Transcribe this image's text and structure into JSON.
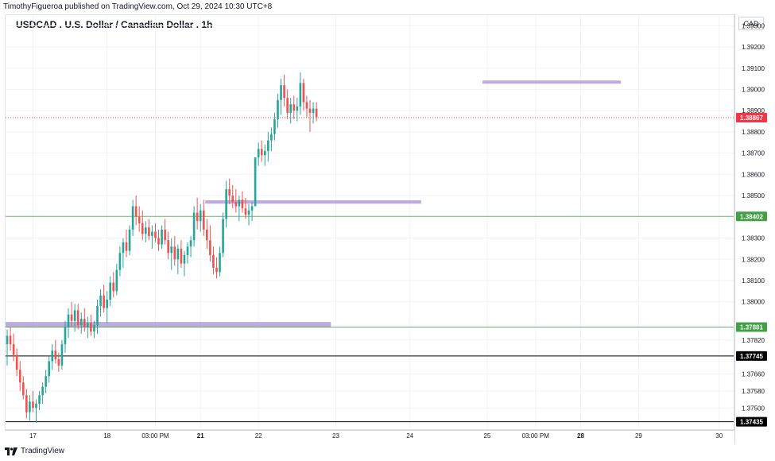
{
  "header": {
    "published_text": "TimothyFigueroa published on TradingView.com, Oct 29, 2024 10:30 UTC+8",
    "title": "USDCAD . U.S. Dollar / Canadian Dollar . 1h"
  },
  "price_axis": {
    "currency": "CAD"
  },
  "footer": {
    "brand": "TradingView"
  },
  "colors": {
    "up": "#26a69a",
    "down": "#ef5350",
    "zone": "#b39ddb",
    "last_price_tag": "#f23645",
    "support_tag": "#43a047",
    "black_tag": "#000000"
  },
  "chart_data": {
    "type": "candlestick",
    "symbol": "USDCAD",
    "interval": "1h",
    "ylim": [
      1.374,
      1.3935
    ],
    "y_ticks": [
      "1.39300",
      "1.39200",
      "1.39100",
      "1.39000",
      "1.38900",
      "1.38800",
      "1.38700",
      "1.38600",
      "1.38500",
      "1.38300",
      "1.38200",
      "1.38100",
      "1.38000",
      "1.37820",
      "1.37660",
      "1.37580",
      "1.37500"
    ],
    "y_tick_values": [
      1.393,
      1.392,
      1.391,
      1.39,
      1.389,
      1.388,
      1.387,
      1.386,
      1.385,
      1.383,
      1.382,
      1.381,
      1.38,
      1.3782,
      1.3766,
      1.3758,
      1.375
    ],
    "x_ticks": [
      {
        "label": "17",
        "bar": 8
      },
      {
        "label": "18",
        "bar": 31
      },
      {
        "label": "03:00 PM",
        "bar": 46
      },
      {
        "label": "21",
        "bar": 60
      },
      {
        "label": "22",
        "bar": 78
      },
      {
        "label": "23",
        "bar": 102
      },
      {
        "label": "24",
        "bar": 125
      },
      {
        "label": "25",
        "bar": 149
      },
      {
        "label": "03:00 PM",
        "bar": 164
      },
      {
        "label": "28",
        "bar": 178
      },
      {
        "label": "29",
        "bar": 196
      },
      {
        "label": "30",
        "bar": 221
      }
    ],
    "candles_ohlc": [
      [
        1.378,
        1.3787,
        1.377,
        1.3784
      ],
      [
        1.3784,
        1.3788,
        1.3777,
        1.378
      ],
      [
        1.378,
        1.3785,
        1.3772,
        1.3775
      ],
      [
        1.3775,
        1.3778,
        1.3765,
        1.3768
      ],
      [
        1.3768,
        1.3772,
        1.3758,
        1.3762
      ],
      [
        1.3762,
        1.3765,
        1.3754,
        1.3756
      ],
      [
        1.3756,
        1.3759,
        1.3745,
        1.3748
      ],
      [
        1.3748,
        1.3756,
        1.3744,
        1.3753
      ],
      [
        1.3753,
        1.3758,
        1.3748,
        1.375
      ],
      [
        1.375,
        1.3754,
        1.3743,
        1.3752
      ],
      [
        1.3752,
        1.3758,
        1.3749,
        1.3756
      ],
      [
        1.3756,
        1.3762,
        1.3752,
        1.376
      ],
      [
        1.376,
        1.3768,
        1.3757,
        1.3765
      ],
      [
        1.3765,
        1.3775,
        1.3762,
        1.3772
      ],
      [
        1.3772,
        1.378,
        1.3768,
        1.3777
      ],
      [
        1.3777,
        1.3782,
        1.3771,
        1.3773
      ],
      [
        1.3773,
        1.3776,
        1.3767,
        1.377
      ],
      [
        1.377,
        1.3782,
        1.3768,
        1.378
      ],
      [
        1.378,
        1.3791,
        1.3776,
        1.3788
      ],
      [
        1.3788,
        1.3797,
        1.3783,
        1.3794
      ],
      [
        1.3794,
        1.38,
        1.3788,
        1.3791
      ],
      [
        1.3791,
        1.3799,
        1.3786,
        1.3796
      ],
      [
        1.3796,
        1.3799,
        1.3787,
        1.3789
      ],
      [
        1.3789,
        1.3795,
        1.3785,
        1.3792
      ],
      [
        1.3792,
        1.3797,
        1.3786,
        1.3788
      ],
      [
        1.3788,
        1.3793,
        1.3783,
        1.379
      ],
      [
        1.379,
        1.3794,
        1.3784,
        1.3786
      ],
      [
        1.3786,
        1.3791,
        1.3783,
        1.3789
      ],
      [
        1.3789,
        1.3801,
        1.3785,
        1.3798
      ],
      [
        1.3798,
        1.3806,
        1.3793,
        1.3803
      ],
      [
        1.3803,
        1.3808,
        1.3795,
        1.3797
      ],
      [
        1.3797,
        1.3805,
        1.379,
        1.3801
      ],
      [
        1.3801,
        1.3812,
        1.3798,
        1.3809
      ],
      [
        1.3809,
        1.3814,
        1.3802,
        1.3805
      ],
      [
        1.3805,
        1.3818,
        1.3803,
        1.3815
      ],
      [
        1.3815,
        1.3826,
        1.3812,
        1.3823
      ],
      [
        1.3823,
        1.383,
        1.3816,
        1.3828
      ],
      [
        1.3828,
        1.3834,
        1.3821,
        1.3824
      ],
      [
        1.3824,
        1.3836,
        1.3822,
        1.3834
      ],
      [
        1.3834,
        1.3848,
        1.3831,
        1.3845
      ],
      [
        1.3845,
        1.385,
        1.3836,
        1.384
      ],
      [
        1.384,
        1.3845,
        1.3833,
        1.3837
      ],
      [
        1.3837,
        1.3843,
        1.3829,
        1.3832
      ],
      [
        1.3832,
        1.3838,
        1.3828,
        1.3835
      ],
      [
        1.3835,
        1.3839,
        1.3829,
        1.3831
      ],
      [
        1.3831,
        1.3836,
        1.3825,
        1.3833
      ],
      [
        1.3833,
        1.3837,
        1.3828,
        1.383
      ],
      [
        1.383,
        1.3834,
        1.3824,
        1.3827
      ],
      [
        1.3827,
        1.3836,
        1.3825,
        1.3834
      ],
      [
        1.3834,
        1.3839,
        1.3827,
        1.3829
      ],
      [
        1.3829,
        1.3833,
        1.382,
        1.3823
      ],
      [
        1.3823,
        1.383,
        1.3815,
        1.3826
      ],
      [
        1.3826,
        1.3831,
        1.3817,
        1.382
      ],
      [
        1.382,
        1.3827,
        1.3813,
        1.3825
      ],
      [
        1.3825,
        1.3829,
        1.3816,
        1.3818
      ],
      [
        1.3818,
        1.3824,
        1.3812,
        1.3822
      ],
      [
        1.3822,
        1.3828,
        1.3818,
        1.3826
      ],
      [
        1.3826,
        1.3831,
        1.3821,
        1.3829
      ],
      [
        1.3829,
        1.3845,
        1.3826,
        1.3842
      ],
      [
        1.3842,
        1.3849,
        1.3834,
        1.3838
      ],
      [
        1.3838,
        1.3846,
        1.3833,
        1.3843
      ],
      [
        1.3843,
        1.3848,
        1.3831,
        1.3834
      ],
      [
        1.3834,
        1.3839,
        1.3825,
        1.3829
      ],
      [
        1.3829,
        1.3836,
        1.3819,
        1.3822
      ],
      [
        1.3822,
        1.3826,
        1.3813,
        1.3816
      ],
      [
        1.3816,
        1.3821,
        1.3811,
        1.3814
      ],
      [
        1.3814,
        1.3826,
        1.3812,
        1.3823
      ],
      [
        1.3823,
        1.3842,
        1.3821,
        1.3839
      ],
      [
        1.3839,
        1.3857,
        1.3835,
        1.3853
      ],
      [
        1.3853,
        1.3858,
        1.3846,
        1.385
      ],
      [
        1.385,
        1.3855,
        1.3844,
        1.3847
      ],
      [
        1.3847,
        1.3853,
        1.3842,
        1.3845
      ],
      [
        1.3845,
        1.385,
        1.3838,
        1.3848
      ],
      [
        1.3848,
        1.3852,
        1.3842,
        1.3844
      ],
      [
        1.3844,
        1.3849,
        1.3839,
        1.3841
      ],
      [
        1.3841,
        1.3846,
        1.3836,
        1.3843
      ],
      [
        1.3843,
        1.3847,
        1.3838,
        1.3845
      ],
      [
        1.3845,
        1.3848,
        1.3872,
        1.3868
      ],
      [
        1.3868,
        1.3875,
        1.3864,
        1.3872
      ],
      [
        1.3872,
        1.3876,
        1.3866,
        1.3869
      ],
      [
        1.3869,
        1.3874,
        1.3864,
        1.3871
      ],
      [
        1.3871,
        1.388,
        1.3866,
        1.3876
      ],
      [
        1.3876,
        1.3882,
        1.3871,
        1.3879
      ],
      [
        1.3879,
        1.3889,
        1.3876,
        1.3886
      ],
      [
        1.3886,
        1.3898,
        1.3882,
        1.3895
      ],
      [
        1.3895,
        1.3905,
        1.3888,
        1.3902
      ],
      [
        1.3902,
        1.3907,
        1.3892,
        1.3896
      ],
      [
        1.3896,
        1.39,
        1.3886,
        1.3889
      ],
      [
        1.3889,
        1.3896,
        1.3884,
        1.3893
      ],
      [
        1.3893,
        1.3897,
        1.3886,
        1.389
      ],
      [
        1.389,
        1.3896,
        1.3885,
        1.3892
      ],
      [
        1.3892,
        1.3908,
        1.3888,
        1.3903
      ],
      [
        1.3903,
        1.3905,
        1.389,
        1.3894
      ],
      [
        1.3894,
        1.3897,
        1.3887,
        1.3891
      ],
      [
        1.3891,
        1.3895,
        1.388,
        1.3889
      ],
      [
        1.3889,
        1.3894,
        1.3884,
        1.3891
      ],
      [
        1.3891,
        1.3894,
        1.3885,
        1.3887
      ]
    ],
    "zones": [
      {
        "price_top": 1.37905,
        "price_bottom": 1.3788,
        "from_bar": 0,
        "to_bar": 100
      },
      {
        "price_top": 1.38478,
        "price_bottom": 1.38462,
        "from_bar": 62,
        "to_bar": 128
      },
      {
        "price_top": 1.39042,
        "price_bottom": 1.39028,
        "from_bar": 148,
        "to_bar": 190
      }
    ],
    "horizontal_lines": [
      {
        "price": 1.38402,
        "label": "1.38402",
        "style": "support"
      },
      {
        "price": 1.37881,
        "label": "1.37881",
        "style": "support"
      },
      {
        "price": 1.37745,
        "label": "1.37745",
        "style": "black"
      },
      {
        "price": 1.37435,
        "label": "1.37435",
        "style": "black"
      },
      {
        "price": 1.38867,
        "label": "1.38867",
        "style": "last_price"
      }
    ]
  }
}
